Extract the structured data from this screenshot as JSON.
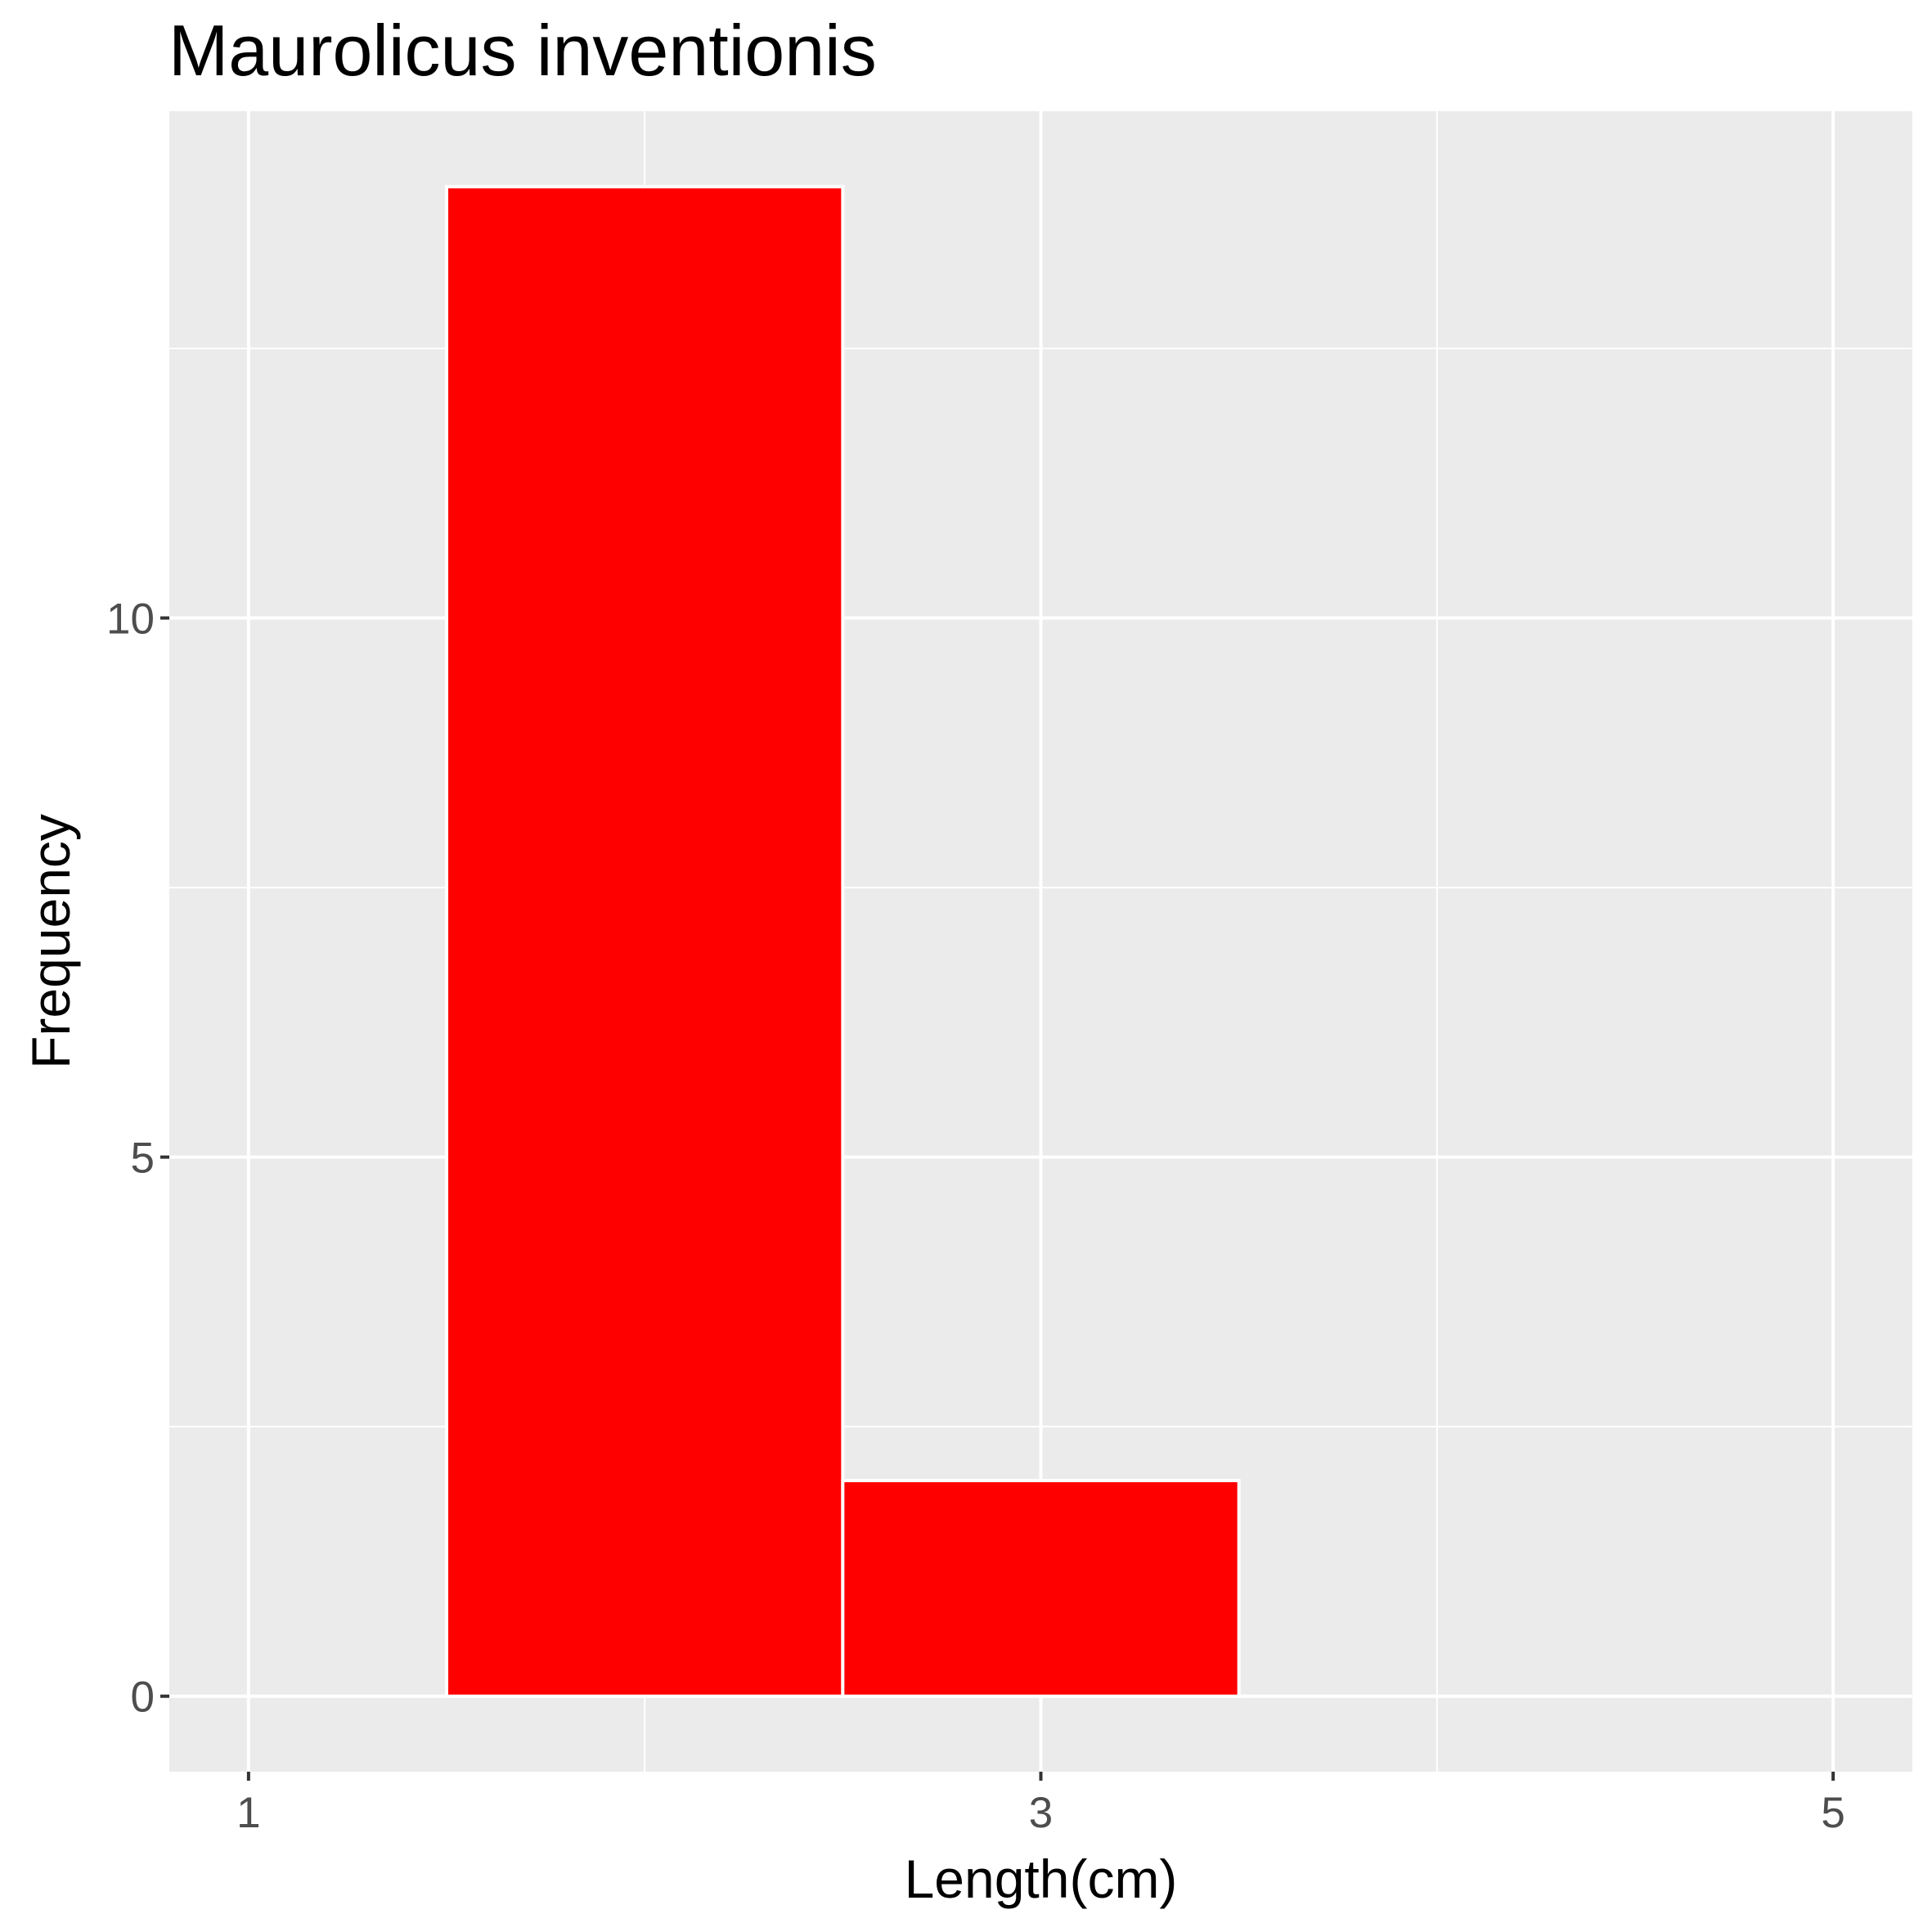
{
  "chart_data": {
    "type": "bar",
    "subtype": "histogram",
    "title": "Maurolicus inventionis",
    "xlabel": "Length(cm)",
    "ylabel": "Frequency",
    "bins": [
      {
        "x_start": 1.5,
        "x_end": 2.5,
        "count": 14
      },
      {
        "x_start": 2.5,
        "x_end": 3.5,
        "count": 2
      }
    ],
    "categories": [
      "1.5-2.5",
      "2.5-3.5"
    ],
    "values": [
      14,
      2
    ],
    "xlim": [
      0.8,
      5.2
    ],
    "ylim": [
      -0.7,
      14.7
    ],
    "x_ticks": [
      1,
      3,
      5
    ],
    "x_tick_labels": [
      "1",
      "3",
      "5"
    ],
    "x_minor_gridlines": [
      2,
      4
    ],
    "y_ticks": [
      0,
      5,
      10
    ],
    "y_tick_labels": [
      "0",
      "5",
      "10"
    ],
    "y_minor_gridlines": [
      2.5,
      7.5,
      12.5
    ],
    "grid": true,
    "legend": "none",
    "colors": {
      "bar_fill": "#ff0000",
      "bar_outline": "#ffffff",
      "panel_background": "#ebebeb",
      "gridline": "#ffffff",
      "tick_label": "#4d4d4d",
      "text": "#000000"
    }
  }
}
